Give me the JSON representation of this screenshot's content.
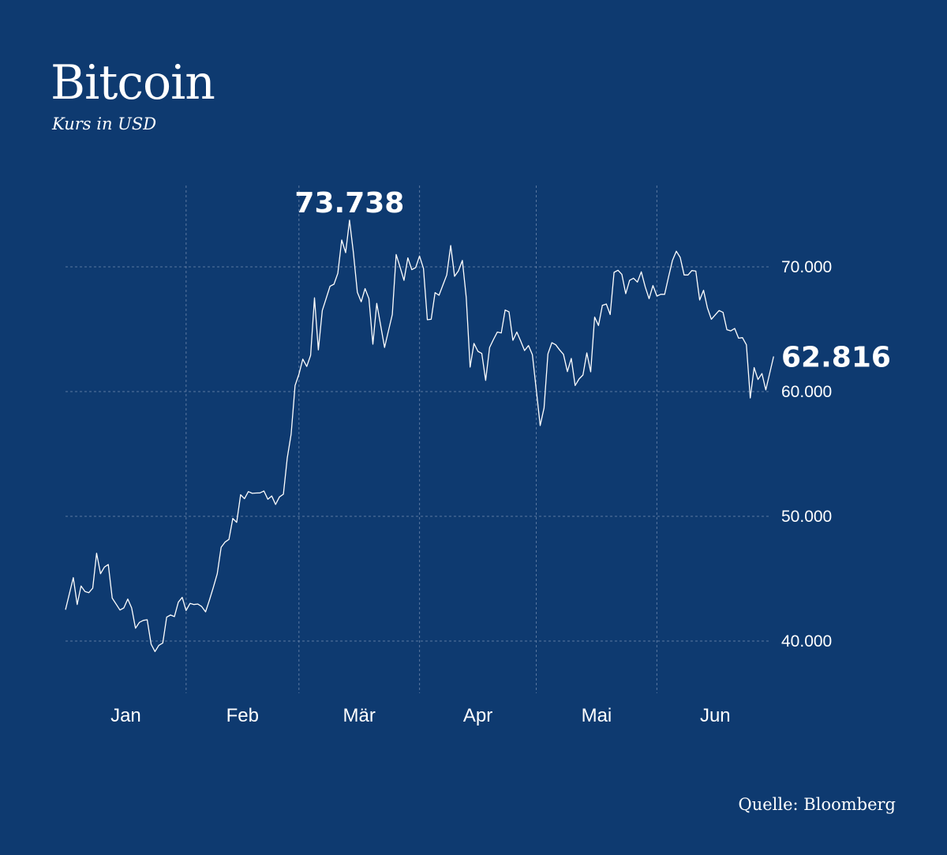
{
  "chart_data": {
    "type": "line",
    "title": "Bitcoin",
    "subtitle": "Kurs in USD",
    "source": "Quelle: Bloomberg",
    "xlabel": "",
    "ylabel": "",
    "ylim": [
      36000,
      77000
    ],
    "yticks": [
      {
        "value": 40000,
        "label": "40.000"
      },
      {
        "value": 50000,
        "label": "50.000"
      },
      {
        "value": 60000,
        "label": "60.000"
      },
      {
        "value": 70000,
        "label": "70.000"
      }
    ],
    "x_tick_labels": [
      "Jan",
      "Feb",
      "Mär",
      "Apr",
      "Mai",
      "Jun"
    ],
    "grid": true,
    "line_color": "#ffffff",
    "background_color": "#0e3a70",
    "annotations": [
      {
        "label": "73.738",
        "date": "03-14",
        "value": 73738,
        "type": "peak"
      },
      {
        "label": "62.816",
        "date": "07-01",
        "value": 62816,
        "type": "last"
      }
    ],
    "series": [
      {
        "points": [
          [
            "01-01",
            42510
          ],
          [
            "01-03",
            45080
          ],
          [
            "01-04",
            42930
          ],
          [
            "01-05",
            44410
          ],
          [
            "01-06",
            43970
          ],
          [
            "01-07",
            43880
          ],
          [
            "01-08",
            44240
          ],
          [
            "01-09",
            47040
          ],
          [
            "01-10",
            45400
          ],
          [
            "01-11",
            45930
          ],
          [
            "01-12",
            46140
          ],
          [
            "01-13",
            43440
          ],
          [
            "01-15",
            42490
          ],
          [
            "01-16",
            42660
          ],
          [
            "01-17",
            43370
          ],
          [
            "01-18",
            42660
          ],
          [
            "01-19",
            41030
          ],
          [
            "01-20",
            41500
          ],
          [
            "01-21",
            41660
          ],
          [
            "01-22",
            41710
          ],
          [
            "01-23",
            39750
          ],
          [
            "01-24",
            39160
          ],
          [
            "01-25",
            39660
          ],
          [
            "01-26",
            39850
          ],
          [
            "01-27",
            41920
          ],
          [
            "01-28",
            42090
          ],
          [
            "01-29",
            41960
          ],
          [
            "01-30",
            43120
          ],
          [
            "01-31",
            43500
          ],
          [
            "02-01",
            42450
          ],
          [
            "02-02",
            43020
          ],
          [
            "02-03",
            42930
          ],
          [
            "02-04",
            42970
          ],
          [
            "02-05",
            42770
          ],
          [
            "02-06",
            42340
          ],
          [
            "02-07",
            43290
          ],
          [
            "02-08",
            44300
          ],
          [
            "02-09",
            45400
          ],
          [
            "02-10",
            47510
          ],
          [
            "02-11",
            47930
          ],
          [
            "02-12",
            48150
          ],
          [
            "02-13",
            49830
          ],
          [
            "02-14",
            49510
          ],
          [
            "02-15",
            51730
          ],
          [
            "02-16",
            51410
          ],
          [
            "02-17",
            51980
          ],
          [
            "02-18",
            51840
          ],
          [
            "02-19",
            51870
          ],
          [
            "02-20",
            51880
          ],
          [
            "02-21",
            52030
          ],
          [
            "02-22",
            51370
          ],
          [
            "02-23",
            51630
          ],
          [
            "02-24",
            50950
          ],
          [
            "02-25",
            51560
          ],
          [
            "02-26",
            51770
          ],
          [
            "02-27",
            54680
          ],
          [
            "02-28",
            56580
          ],
          [
            "02-29",
            60490
          ],
          [
            "03-01",
            61390
          ],
          [
            "03-02",
            62600
          ],
          [
            "03-03",
            62010
          ],
          [
            "03-04",
            62910
          ],
          [
            "03-05",
            67510
          ],
          [
            "03-06",
            63340
          ],
          [
            "03-07",
            66500
          ],
          [
            "03-08",
            67470
          ],
          [
            "03-09",
            68440
          ],
          [
            "03-10",
            68610
          ],
          [
            "03-11",
            69490
          ],
          [
            "03-12",
            72150
          ],
          [
            "03-13",
            71140
          ],
          [
            "03-14",
            73738
          ],
          [
            "03-15",
            71140
          ],
          [
            "03-16",
            67970
          ],
          [
            "03-17",
            67200
          ],
          [
            "03-18",
            68250
          ],
          [
            "03-19",
            67450
          ],
          [
            "03-20",
            63800
          ],
          [
            "03-21",
            67070
          ],
          [
            "03-22",
            65320
          ],
          [
            "03-23",
            63540
          ],
          [
            "03-24",
            64870
          ],
          [
            "03-25",
            66180
          ],
          [
            "03-26",
            70990
          ],
          [
            "03-27",
            69960
          ],
          [
            "03-28",
            68920
          ],
          [
            "03-29",
            70720
          ],
          [
            "03-30",
            69770
          ],
          [
            "03-31",
            69940
          ],
          [
            "04-01",
            70870
          ],
          [
            "04-02",
            69870
          ],
          [
            "04-03",
            65760
          ],
          [
            "04-04",
            65800
          ],
          [
            "04-05",
            67930
          ],
          [
            "04-06",
            67720
          ],
          [
            "04-07",
            68540
          ],
          [
            "04-08",
            69350
          ],
          [
            "04-09",
            71710
          ],
          [
            "04-10",
            69240
          ],
          [
            "04-11",
            69680
          ],
          [
            "04-12",
            70510
          ],
          [
            "04-13",
            67550
          ],
          [
            "04-14",
            61960
          ],
          [
            "04-15",
            63860
          ],
          [
            "04-16",
            63230
          ],
          [
            "04-17",
            63060
          ],
          [
            "04-18",
            60900
          ],
          [
            "04-19",
            63540
          ],
          [
            "04-20",
            64180
          ],
          [
            "04-21",
            64770
          ],
          [
            "04-22",
            64700
          ],
          [
            "04-23",
            66540
          ],
          [
            "04-24",
            66390
          ],
          [
            "04-25",
            64110
          ],
          [
            "04-26",
            64770
          ],
          [
            "04-27",
            64050
          ],
          [
            "04-28",
            63290
          ],
          [
            "04-29",
            63690
          ],
          [
            "04-30",
            62960
          ],
          [
            "05-01",
            60170
          ],
          [
            "05-02",
            57280
          ],
          [
            "05-03",
            58690
          ],
          [
            "05-04",
            63020
          ],
          [
            "05-05",
            63920
          ],
          [
            "05-06",
            63750
          ],
          [
            "05-07",
            63340
          ],
          [
            "05-08",
            62990
          ],
          [
            "05-09",
            61600
          ],
          [
            "05-10",
            62660
          ],
          [
            "05-11",
            60490
          ],
          [
            "05-12",
            61010
          ],
          [
            "05-13",
            61330
          ],
          [
            "05-14",
            63100
          ],
          [
            "05-15",
            61580
          ],
          [
            "05-16",
            65970
          ],
          [
            "05-17",
            65300
          ],
          [
            "05-18",
            66920
          ],
          [
            "05-19",
            67020
          ],
          [
            "05-20",
            66180
          ],
          [
            "05-21",
            69560
          ],
          [
            "05-22",
            69730
          ],
          [
            "05-23",
            69390
          ],
          [
            "05-24",
            67850
          ],
          [
            "05-25",
            68920
          ],
          [
            "05-26",
            69090
          ],
          [
            "05-27",
            68780
          ],
          [
            "05-28",
            69600
          ],
          [
            "05-29",
            68400
          ],
          [
            "05-30",
            67450
          ],
          [
            "05-31",
            68500
          ],
          [
            "06-01",
            67660
          ],
          [
            "06-02",
            67800
          ],
          [
            "06-03",
            67800
          ],
          [
            "06-04",
            69180
          ],
          [
            "06-05",
            70510
          ],
          [
            "06-06",
            71250
          ],
          [
            "06-07",
            70760
          ],
          [
            "06-08",
            69350
          ],
          [
            "06-09",
            69350
          ],
          [
            "06-10",
            69700
          ],
          [
            "06-11",
            69660
          ],
          [
            "06-12",
            67340
          ],
          [
            "06-13",
            68120
          ],
          [
            "06-14",
            66710
          ],
          [
            "06-15",
            65800
          ],
          [
            "06-16",
            66150
          ],
          [
            "06-17",
            66500
          ],
          [
            "06-18",
            66350
          ],
          [
            "06-19",
            64960
          ],
          [
            "06-20",
            64870
          ],
          [
            "06-21",
            65060
          ],
          [
            "06-22",
            64280
          ],
          [
            "06-23",
            64320
          ],
          [
            "06-24",
            63750
          ],
          [
            "06-25",
            59490
          ],
          [
            "06-26",
            61920
          ],
          [
            "06-27",
            60970
          ],
          [
            "06-28",
            61440
          ],
          [
            "06-29",
            60130
          ],
          [
            "06-30",
            61460
          ],
          [
            "07-01",
            62816
          ]
        ]
      }
    ]
  }
}
